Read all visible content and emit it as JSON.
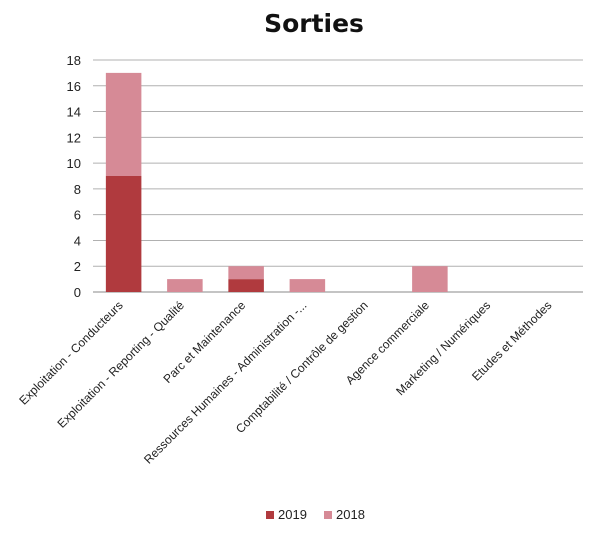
{
  "chart_data": {
    "type": "bar",
    "stacked": true,
    "title": "Sorties",
    "xlabel": "",
    "ylabel": "",
    "ylim": [
      0,
      18
    ],
    "yticks": [
      0,
      2,
      4,
      6,
      8,
      10,
      12,
      14,
      16,
      18
    ],
    "grid": true,
    "legend_position": "bottom",
    "categories": [
      "Exploitation - Conducteurs",
      "Exploitation - Reporting - Qualité",
      "Parc et Maintenance",
      "Ressources Humaines - Administration -...",
      "Comptabilité / Contrôle de gestion",
      "Agence commerciale",
      "Marketing / Numériques",
      "Etudes et Méthodes"
    ],
    "series": [
      {
        "name": "2019",
        "color": "#b03a3e",
        "values": [
          9,
          0,
          1,
          0,
          0,
          0,
          0,
          0
        ]
      },
      {
        "name": "2018",
        "color": "#d68a96",
        "values": [
          8,
          1,
          1,
          1,
          0,
          2,
          0,
          0
        ]
      }
    ]
  }
}
